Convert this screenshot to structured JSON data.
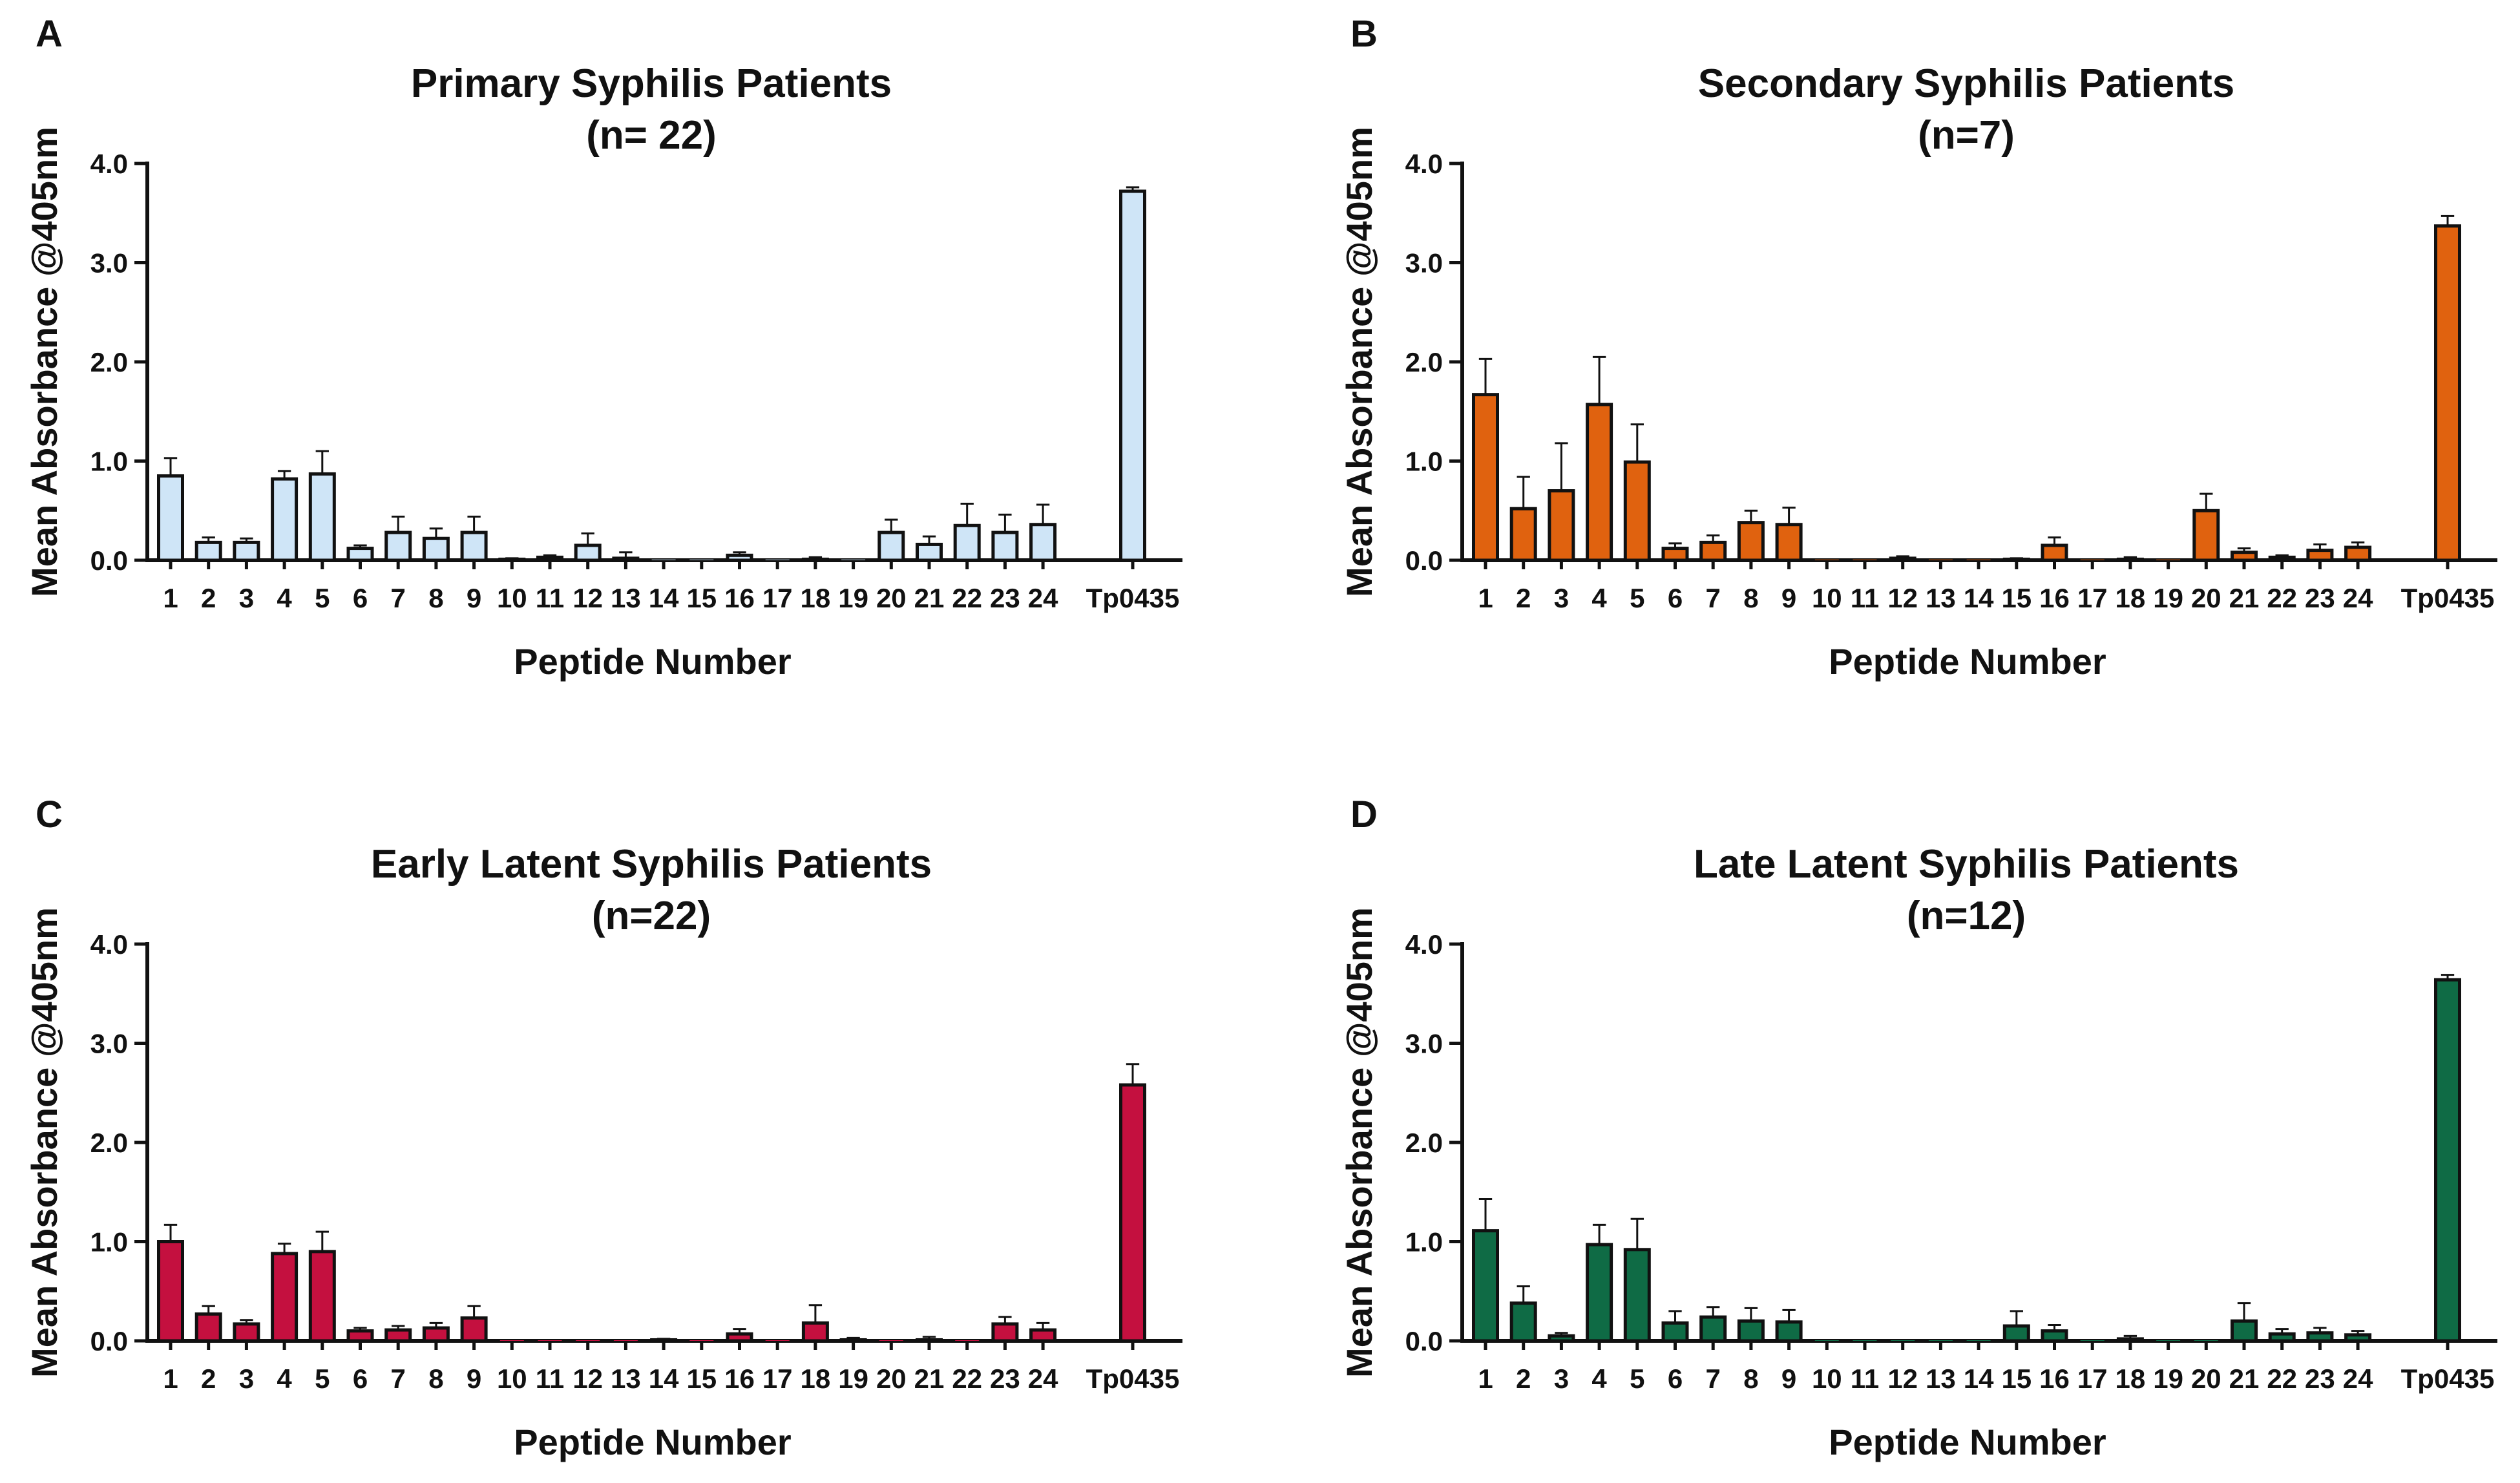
{
  "chart_data": [
    {
      "type": "bar",
      "panel": "A",
      "title": "Primary Syphilis Patients",
      "subtitle": "(n= 22)",
      "xlabel": "Peptide Number",
      "ylabel": "Mean Absorbance @405nm",
      "ylim": [
        0,
        4.0
      ],
      "yticks": [
        "0.0",
        "1.0",
        "2.0",
        "3.0",
        "4.0"
      ],
      "categories": [
        "1",
        "2",
        "3",
        "4",
        "5",
        "6",
        "7",
        "8",
        "9",
        "10",
        "11",
        "12",
        "13",
        "14",
        "15",
        "16",
        "17",
        "18",
        "19",
        "20",
        "21",
        "22",
        "23",
        "24",
        "Tp0435"
      ],
      "values": [
        0.85,
        0.18,
        0.18,
        0.82,
        0.87,
        0.12,
        0.28,
        0.22,
        0.28,
        0.01,
        0.03,
        0.15,
        0.02,
        0.0,
        0.0,
        0.05,
        0.0,
        0.01,
        0.0,
        0.28,
        0.16,
        0.35,
        0.28,
        0.36,
        3.72
      ],
      "errors": [
        0.18,
        0.05,
        0.04,
        0.08,
        0.23,
        0.03,
        0.16,
        0.1,
        0.16,
        0.01,
        0.02,
        0.12,
        0.06,
        0.0,
        0.0,
        0.03,
        0.0,
        0.02,
        0.0,
        0.13,
        0.08,
        0.22,
        0.18,
        0.2,
        0.04
      ],
      "color": "#cfe5f7"
    },
    {
      "type": "bar",
      "panel": "B",
      "title": "Secondary Syphilis Patients",
      "subtitle": "(n=7)",
      "xlabel": "Peptide Number",
      "ylabel": "Mean Absorbance @405nm",
      "ylim": [
        0,
        4.0
      ],
      "yticks": [
        "0.0",
        "1.0",
        "2.0",
        "3.0",
        "4.0"
      ],
      "categories": [
        "1",
        "2",
        "3",
        "4",
        "5",
        "6",
        "7",
        "8",
        "9",
        "10",
        "11",
        "12",
        "13",
        "14",
        "15",
        "16",
        "17",
        "18",
        "19",
        "20",
        "21",
        "22",
        "23",
        "24",
        "Tp0435"
      ],
      "values": [
        1.67,
        0.52,
        0.7,
        1.57,
        0.99,
        0.12,
        0.18,
        0.38,
        0.36,
        0.0,
        0.0,
        0.02,
        0.0,
        0.0,
        0.01,
        0.15,
        0.0,
        0.01,
        0.0,
        0.5,
        0.08,
        0.03,
        0.1,
        0.13,
        3.37
      ],
      "errors": [
        0.36,
        0.32,
        0.48,
        0.48,
        0.38,
        0.05,
        0.07,
        0.12,
        0.17,
        0.0,
        0.0,
        0.02,
        0.0,
        0.0,
        0.01,
        0.08,
        0.0,
        0.02,
        0.0,
        0.17,
        0.04,
        0.02,
        0.06,
        0.05,
        0.1
      ],
      "color": "#e0620f"
    },
    {
      "type": "bar",
      "panel": "C",
      "title": "Early Latent Syphilis Patients",
      "subtitle": "(n=22)",
      "xlabel": "Peptide Number",
      "ylabel": "Mean Absorbance @405nm",
      "ylim": [
        0,
        4.0
      ],
      "yticks": [
        "0.0",
        "1.0",
        "2.0",
        "3.0",
        "4.0"
      ],
      "categories": [
        "1",
        "2",
        "3",
        "4",
        "5",
        "6",
        "7",
        "8",
        "9",
        "10",
        "11",
        "12",
        "13",
        "14",
        "15",
        "16",
        "17",
        "18",
        "19",
        "20",
        "21",
        "22",
        "23",
        "24",
        "Tp0435"
      ],
      "values": [
        1.0,
        0.27,
        0.17,
        0.88,
        0.9,
        0.1,
        0.11,
        0.13,
        0.23,
        0.0,
        0.0,
        0.0,
        0.0,
        0.01,
        0.0,
        0.07,
        0.0,
        0.18,
        0.01,
        0.0,
        0.01,
        0.0,
        0.17,
        0.11,
        2.58
      ],
      "errors": [
        0.17,
        0.08,
        0.04,
        0.1,
        0.2,
        0.03,
        0.04,
        0.05,
        0.12,
        0.0,
        0.0,
        0.0,
        0.0,
        0.01,
        0.0,
        0.05,
        0.0,
        0.18,
        0.02,
        0.0,
        0.03,
        0.0,
        0.07,
        0.07,
        0.21
      ],
      "color": "#c4103f"
    },
    {
      "type": "bar",
      "panel": "D",
      "title": "Late Latent Syphilis Patients",
      "subtitle": "(n=12)",
      "xlabel": "Peptide Number",
      "ylabel": "Mean Absorbance @405nm",
      "ylim": [
        0,
        4.0
      ],
      "yticks": [
        "0.0",
        "1.0",
        "2.0",
        "3.0",
        "4.0"
      ],
      "categories": [
        "1",
        "2",
        "3",
        "4",
        "5",
        "6",
        "7",
        "8",
        "9",
        "10",
        "11",
        "12",
        "13",
        "14",
        "15",
        "16",
        "17",
        "18",
        "19",
        "20",
        "21",
        "22",
        "23",
        "24",
        "Tp0435"
      ],
      "values": [
        1.11,
        0.38,
        0.05,
        0.97,
        0.92,
        0.18,
        0.24,
        0.2,
        0.19,
        0.0,
        0.0,
        0.0,
        0.0,
        0.0,
        0.15,
        0.1,
        0.0,
        0.02,
        0.0,
        0.0,
        0.2,
        0.07,
        0.08,
        0.06,
        3.64
      ],
      "errors": [
        0.32,
        0.17,
        0.03,
        0.2,
        0.31,
        0.12,
        0.1,
        0.13,
        0.12,
        0.0,
        0.0,
        0.0,
        0.0,
        0.0,
        0.15,
        0.06,
        0.0,
        0.03,
        0.0,
        0.0,
        0.18,
        0.05,
        0.05,
        0.04,
        0.05
      ],
      "color": "#0f6b45"
    }
  ]
}
